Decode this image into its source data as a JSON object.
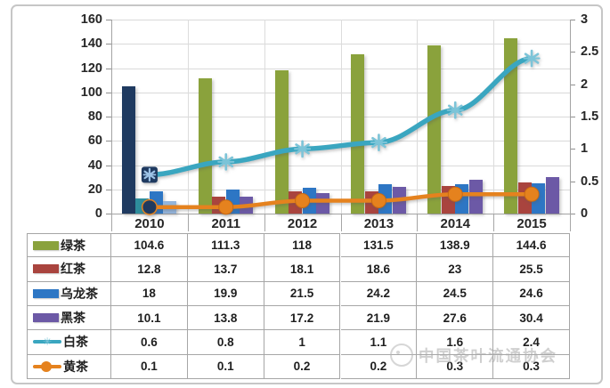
{
  "watermark": {
    "text": "中国茶叶流通协会",
    "logo": "association-logo-icon"
  },
  "chart_data": {
    "type": "bar",
    "subtype": "combo-bar-line-with-data-table",
    "title": "",
    "xlabel": "",
    "ylabel": "",
    "grid": true,
    "legend_position": "data-table-left",
    "categories": [
      "2010",
      "2011",
      "2012",
      "2013",
      "2014",
      "2015"
    ],
    "left_axis": {
      "min": 0,
      "max": 160,
      "step": 20,
      "ticks": [
        "0",
        "20",
        "40",
        "60",
        "80",
        "100",
        "120",
        "140",
        "160"
      ]
    },
    "right_axis": {
      "min": 0,
      "max": 3,
      "step": 0.5,
      "ticks": [
        "0",
        "0.5",
        "1",
        "1.5",
        "2",
        "2.5",
        "3"
      ]
    },
    "series": [
      {
        "name": "绿茶",
        "type": "bar",
        "axis": "left",
        "color": "#8aa23c",
        "first_color": "#1f3a60",
        "values": [
          104.6,
          111.3,
          118,
          131.5,
          138.9,
          144.6
        ]
      },
      {
        "name": "红茶",
        "type": "bar",
        "axis": "left",
        "color": "#a9443e",
        "first_color": "#2e8d9c",
        "values": [
          12.8,
          13.7,
          18.1,
          18.6,
          23,
          25.5
        ]
      },
      {
        "name": "乌龙茶",
        "type": "bar",
        "axis": "left",
        "color": "#2d76c4",
        "first_color": "#2d76c4",
        "values": [
          18,
          19.9,
          21.5,
          24.2,
          24.5,
          24.6
        ]
      },
      {
        "name": "黑茶",
        "type": "bar",
        "axis": "left",
        "color": "#6c59a6",
        "first_color": "#93b5dc",
        "values": [
          10.1,
          13.8,
          17.2,
          21.9,
          27.6,
          30.4
        ]
      },
      {
        "name": "白茶",
        "type": "line",
        "axis": "right",
        "color": "#3aa6c0",
        "marker": "asterisk",
        "marker_color": "#7cc4d8",
        "first_marker_fill": "#1f3a60",
        "first_marker_glyph": "#9dc3e6",
        "values": [
          0.6,
          0.8,
          1,
          1.1,
          1.6,
          2.4
        ]
      },
      {
        "name": "黄茶",
        "type": "line",
        "axis": "right",
        "color": "#e5821e",
        "marker": "circle",
        "marker_color": "#e5821e",
        "first_marker_fill": "#1f3a60",
        "first_marker_glyph": "#1f3a60",
        "values": [
          0.1,
          0.1,
          0.2,
          0.2,
          0.3,
          0.3
        ]
      }
    ]
  }
}
